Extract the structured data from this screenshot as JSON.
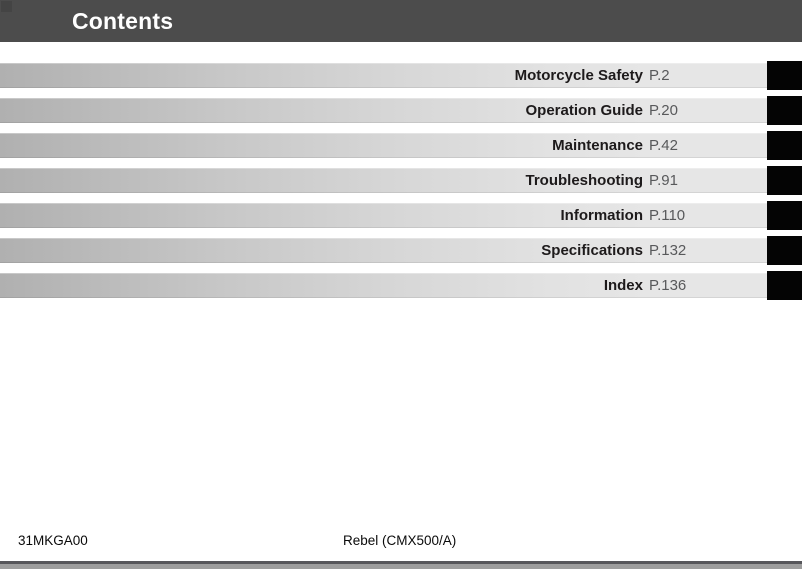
{
  "header": {
    "title": "Contents"
  },
  "toc": {
    "items": [
      {
        "label": "Motorcycle Safety",
        "page": "P.2"
      },
      {
        "label": "Operation Guide",
        "page": "P.20"
      },
      {
        "label": "Maintenance",
        "page": "P.42"
      },
      {
        "label": "Troubleshooting",
        "page": "P.91"
      },
      {
        "label": "Information",
        "page": "P.110"
      },
      {
        "label": "Specifications",
        "page": "P.132"
      },
      {
        "label": "Index",
        "page": "P.136"
      }
    ]
  },
  "footer": {
    "code": "31MKGA00",
    "model": "Rebel (CMX500/A)"
  },
  "colors": {
    "header_bg": "#4c4c4c",
    "bar_gradient_start": "#b0b0b0",
    "bar_gradient_end": "#e6e6e6",
    "chapter_tab": "#000000",
    "label_text": "#1d1a1b",
    "page_ref_text": "#58595b",
    "footer_text": "#0a0a0a",
    "bottom_rule": "#56565a",
    "bottom_edge": "#9d9d9d"
  }
}
